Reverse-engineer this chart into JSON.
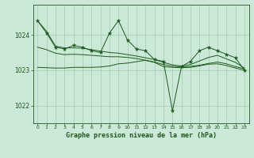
{
  "title": "Graphe pression niveau de la mer (hPa)",
  "yticks": [
    1022,
    1023,
    1024
  ],
  "ylim": [
    1021.5,
    1024.85
  ],
  "xlim": [
    -0.5,
    23.5
  ],
  "bg_color": "#cce8d8",
  "line_color": "#1a5c1a",
  "grid_color": "#9ecfb0",
  "spike_vals": [
    1024.4,
    1024.05,
    1023.65,
    1023.6,
    1023.7,
    1023.65,
    1023.55,
    1023.5,
    1024.05,
    1024.4,
    1023.85,
    1023.6,
    1023.55,
    1023.3,
    1023.25,
    1021.85,
    1023.1,
    1023.25,
    1023.55,
    1023.65,
    1023.55,
    1023.45,
    1023.35,
    1023.0
  ],
  "upper_vals": [
    1024.4,
    1024.1,
    1023.68,
    1023.63,
    1023.63,
    1023.62,
    1023.58,
    1023.54,
    1023.5,
    1023.48,
    1023.44,
    1023.4,
    1023.35,
    1023.3,
    1023.22,
    1023.15,
    1023.12,
    1023.16,
    1023.26,
    1023.36,
    1023.42,
    1023.32,
    1023.22,
    1023.06
  ],
  "lower_vals": [
    1023.08,
    1023.07,
    1023.06,
    1023.06,
    1023.08,
    1023.08,
    1023.08,
    1023.09,
    1023.12,
    1023.18,
    1023.2,
    1023.24,
    1023.28,
    1023.22,
    1023.1,
    1023.08,
    1023.07,
    1023.08,
    1023.12,
    1023.17,
    1023.18,
    1023.13,
    1023.06,
    1023.0
  ],
  "mid_vals": [
    1023.65,
    1023.58,
    1023.48,
    1023.44,
    1023.45,
    1023.44,
    1023.42,
    1023.4,
    1023.38,
    1023.38,
    1023.36,
    1023.33,
    1023.28,
    1023.23,
    1023.16,
    1023.11,
    1023.09,
    1023.11,
    1023.14,
    1023.19,
    1023.23,
    1023.18,
    1023.1,
    1023.04
  ]
}
